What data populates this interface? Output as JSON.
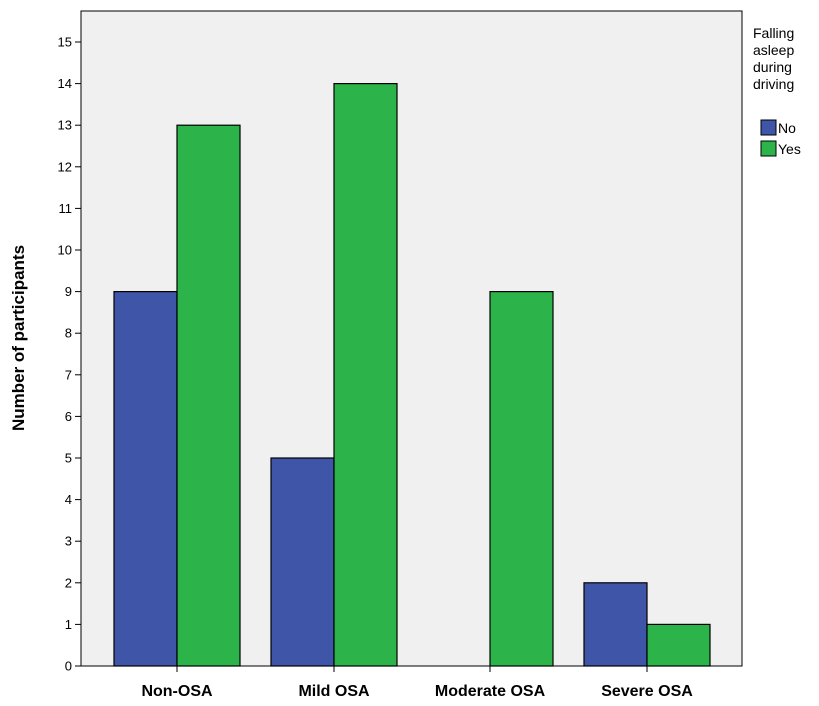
{
  "chart_data": {
    "type": "bar",
    "categories": [
      "Non-OSA",
      "Mild OSA",
      "Moderate OSA",
      "Severe OSA"
    ],
    "series": [
      {
        "name": "No",
        "values": [
          9,
          5,
          0,
          2
        ],
        "color": "#3f56a8"
      },
      {
        "name": "Yes",
        "values": [
          13,
          14,
          9,
          1
        ],
        "color": "#2cb34a"
      }
    ],
    "title": "",
    "xlabel": "",
    "ylabel": "Number of participants",
    "ylim": [
      0,
      15.5
    ],
    "yticks": [
      0,
      1,
      2,
      3,
      4,
      5,
      6,
      7,
      8,
      9,
      10,
      11,
      12,
      13,
      14,
      15
    ],
    "grid": false,
    "plot_background": "#f0f0f0",
    "legend": {
      "title_lines": [
        "Falling",
        "asleep",
        "during",
        "driving"
      ],
      "placement": "right-top"
    }
  }
}
